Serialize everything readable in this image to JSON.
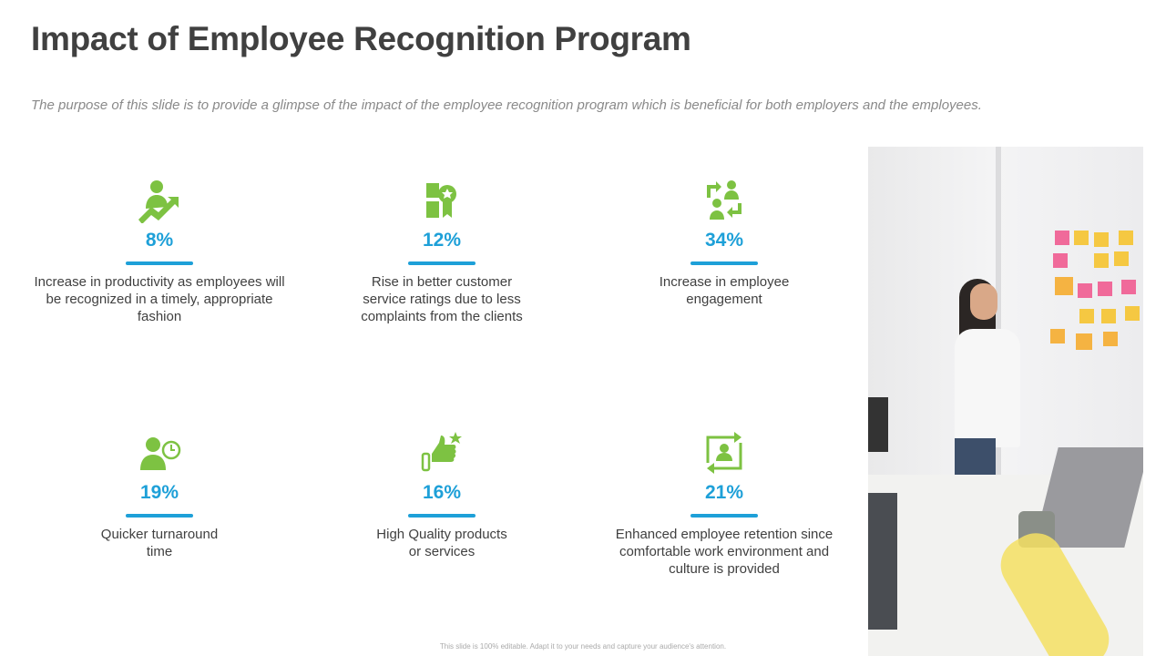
{
  "title": "Impact of Employee Recognition Program",
  "subtitle": "The purpose of this slide is to provide a glimpse of the impact of the employee recognition program which is beneficial for both employers and the employees.",
  "colors": {
    "accent": "#1ea0d8",
    "icon": "#7dc242",
    "title": "#404040"
  },
  "cards": [
    {
      "icon": "person-growth-arrow-icon",
      "value": "8%",
      "text": "Increase  in productivity  as employees will be recognized in a timely, appropriate fashion"
    },
    {
      "icon": "thumbs-up-badge-icon",
      "value": "12%",
      "text": "Rise in better customer service ratings due to less complaints from the clients"
    },
    {
      "icon": "people-exchange-icon",
      "value": "34%",
      "text": "Increase  in employee engagement"
    },
    {
      "icon": "person-clock-icon",
      "value": "19%",
      "text": "Quicker turnaround  time"
    },
    {
      "icon": "thumbs-up-star-icon",
      "value": "16%",
      "text": "High Quality products or services"
    },
    {
      "icon": "person-refresh-icon",
      "value": "21%",
      "text": "Enhanced employee retention since comfortable work environment  and culture is provided"
    }
  ],
  "footer": "This slide is 100% editable. Adapt it to your needs and capture your audience's attention."
}
